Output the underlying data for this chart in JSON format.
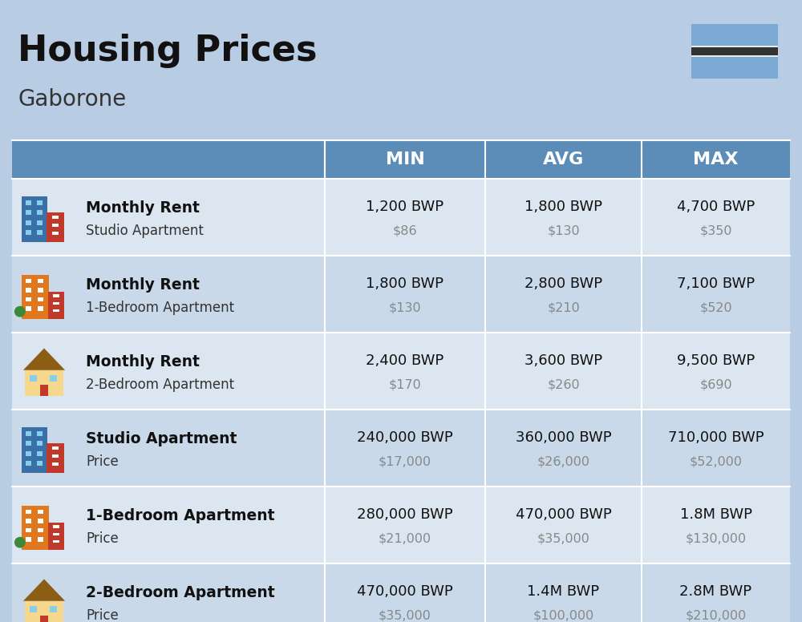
{
  "title": "Housing Prices",
  "subtitle": "Gaborone",
  "bg_color": "#b8cce4",
  "header_bg": "#5b8db8",
  "header_text_color": "#ffffff",
  "row_bg_odd": "#dce6f1",
  "row_bg_even": "#c9d9ea",
  "rows": [
    {
      "icon_type": "blue_building",
      "label_bold": "Monthly Rent",
      "label_sub": "Studio Apartment",
      "min_bwp": "1,200 BWP",
      "min_usd": "$86",
      "avg_bwp": "1,800 BWP",
      "avg_usd": "$130",
      "max_bwp": "4,700 BWP",
      "max_usd": "$350"
    },
    {
      "icon_type": "orange_building",
      "label_bold": "Monthly Rent",
      "label_sub": "1-Bedroom Apartment",
      "min_bwp": "1,800 BWP",
      "min_usd": "$130",
      "avg_bwp": "2,800 BWP",
      "avg_usd": "$210",
      "max_bwp": "7,100 BWP",
      "max_usd": "$520"
    },
    {
      "icon_type": "house_building",
      "label_bold": "Monthly Rent",
      "label_sub": "2-Bedroom Apartment",
      "min_bwp": "2,400 BWP",
      "min_usd": "$170",
      "avg_bwp": "3,600 BWP",
      "avg_usd": "$260",
      "max_bwp": "9,500 BWP",
      "max_usd": "$690"
    },
    {
      "icon_type": "blue_building",
      "label_bold": "Studio Apartment",
      "label_sub": "Price",
      "min_bwp": "240,000 BWP",
      "min_usd": "$17,000",
      "avg_bwp": "360,000 BWP",
      "avg_usd": "$26,000",
      "max_bwp": "710,000 BWP",
      "max_usd": "$52,000"
    },
    {
      "icon_type": "orange_building",
      "label_bold": "1-Bedroom Apartment",
      "label_sub": "Price",
      "min_bwp": "280,000 BWP",
      "min_usd": "$21,000",
      "avg_bwp": "470,000 BWP",
      "avg_usd": "$35,000",
      "max_bwp": "1.8M BWP",
      "max_usd": "$130,000"
    },
    {
      "icon_type": "house_building",
      "label_bold": "2-Bedroom Apartment",
      "label_sub": "Price",
      "min_bwp": "470,000 BWP",
      "min_usd": "$35,000",
      "avg_bwp": "1.4M BWP",
      "avg_usd": "$100,000",
      "max_bwp": "2.8M BWP",
      "max_usd": "$210,000"
    }
  ],
  "flag_light": "#7aaad4",
  "flag_dark": "#333333",
  "flag_white": "#e8e8e8"
}
